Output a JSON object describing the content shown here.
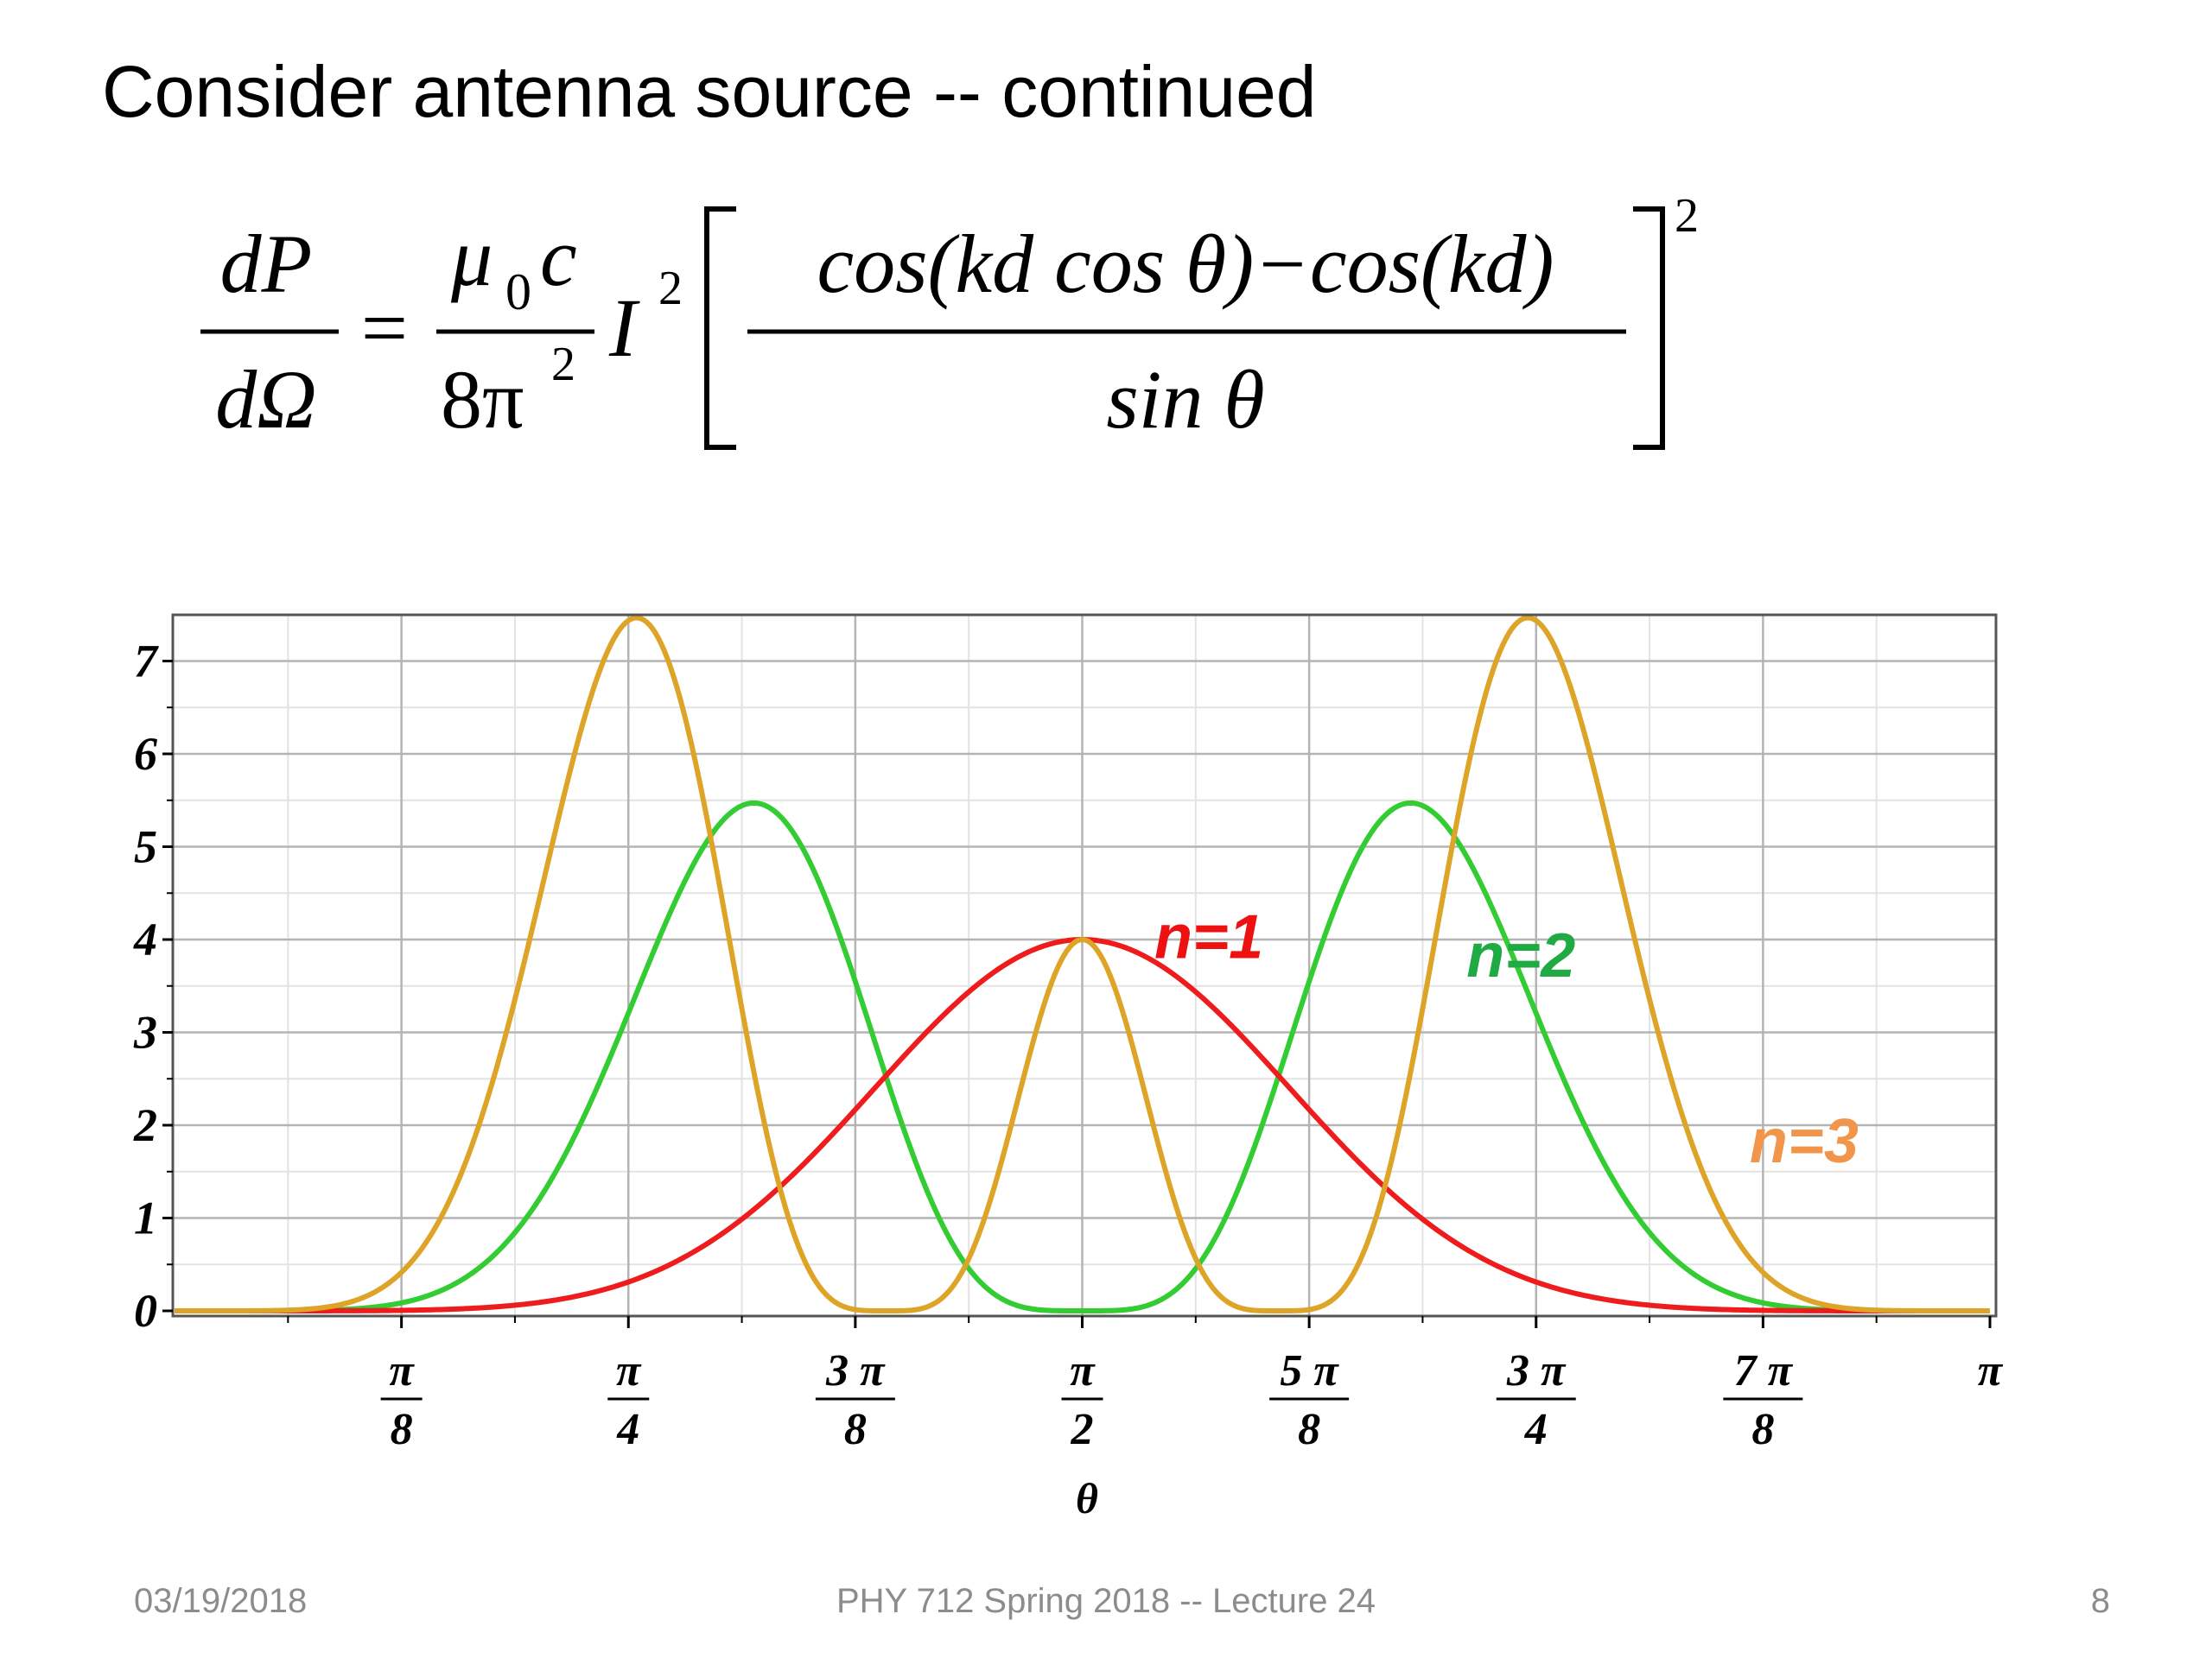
{
  "slide": {
    "title": "Consider antenna source -- continued",
    "footer_date": "03/19/2018",
    "footer_course": "PHY 712  Spring 2018 -- Lecture 24",
    "page_number": "8"
  },
  "equation": {
    "lhs_num": "dP",
    "lhs_den": "dΩ",
    "equals": "=",
    "coef_num_mu": "μ",
    "coef_num_sub": "0",
    "coef_num_c": "c",
    "coef_den": "8π",
    "coef_den_exp": "2",
    "current": "I",
    "current_exp": "2",
    "frac_num": "cos(kd cos θ)−cos(kd)",
    "frac_den": "sin θ",
    "outer_exp": "2"
  },
  "chart_data": {
    "type": "line",
    "xlabel": "θ",
    "ylabel": "",
    "xlim": [
      0,
      3.14159
    ],
    "ylim": [
      0,
      7.5
    ],
    "x_ticks": [
      {
        "value": 0.3927,
        "num": "π",
        "den": "8"
      },
      {
        "value": 0.7854,
        "num": "π",
        "den": "4"
      },
      {
        "value": 1.1781,
        "num": "3 π",
        "den": "8"
      },
      {
        "value": 1.5708,
        "num": "π",
        "den": "2"
      },
      {
        "value": 1.9635,
        "num": "5 π",
        "den": "8"
      },
      {
        "value": 2.3562,
        "num": "3 π",
        "den": "4"
      },
      {
        "value": 2.7489,
        "num": "7 π",
        "den": "8"
      },
      {
        "value": 3.1416,
        "num": "π",
        "den": ""
      }
    ],
    "y_ticks": [
      "0",
      "1",
      "2",
      "3",
      "4",
      "5",
      "6",
      "7"
    ],
    "grid": true,
    "series": [
      {
        "name": "n=1",
        "n": 1,
        "color": "#ee1c1c",
        "label_x": 1.79,
        "label_y": 3.8,
        "label_color": "#ee1111"
      },
      {
        "name": "n=2",
        "n": 2,
        "color": "#33cc33",
        "label_x": 2.33,
        "label_y": 3.6,
        "label_color": "#1faa44"
      },
      {
        "name": "n=3",
        "n": 3,
        "color": "#dda428",
        "label_x": 2.82,
        "label_y": 1.6,
        "label_color": "#f0954a"
      }
    ]
  }
}
